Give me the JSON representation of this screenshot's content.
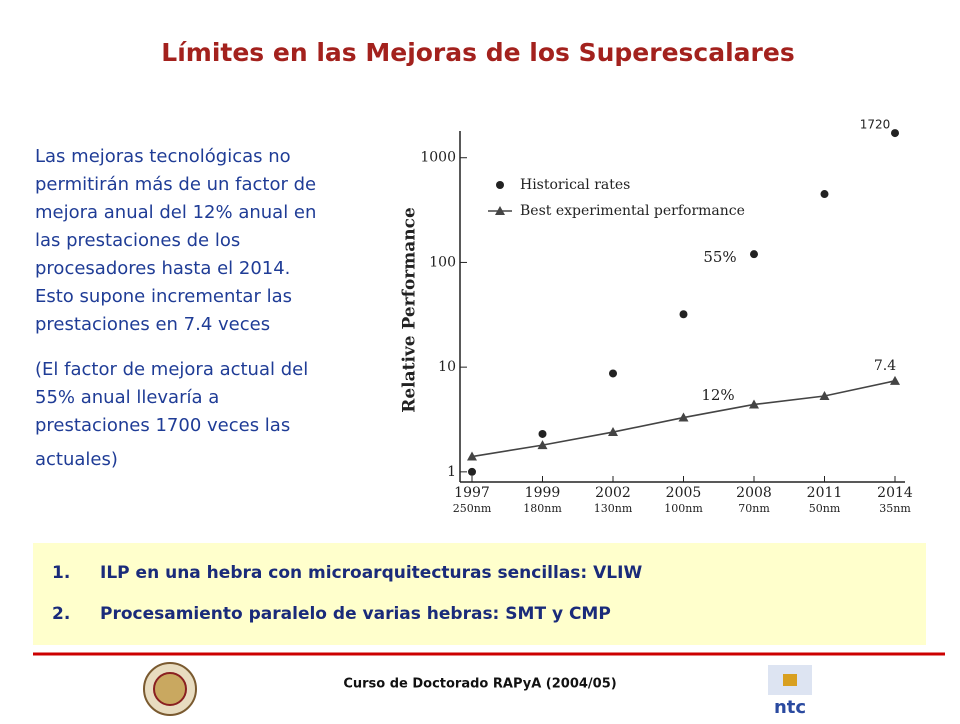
{
  "header": {
    "title": "Límites en las Mejoras de los Superescalares"
  },
  "body": {
    "paragraphs": [
      [
        "Las mejoras tecnológicas no",
        "permitirán más de un factor de",
        "mejora anual del 12% anual en",
        "las prestaciones de los",
        "procesadores hasta el 2014.",
        "Esto supone incrementar las",
        "prestaciones en 7.4 veces"
      ],
      [
        "(El factor de mejora actual del",
        "55% anual llevaría a",
        "prestaciones 1700 veces las",
        "actuales)"
      ]
    ]
  },
  "chart_data": {
    "type": "scatter",
    "y_label": "Relative Performance",
    "log_scale": true,
    "categories": [
      "1997",
      "1999",
      "2002",
      "2005",
      "2008",
      "2011",
      "2014"
    ],
    "sub_labels": [
      "250nm",
      "180nm",
      "130nm",
      "100nm",
      "70nm",
      "50nm",
      "35nm"
    ],
    "series": [
      {
        "name": "Historical rates",
        "color": "#222222",
        "marker": "circle",
        "line": false,
        "values": [
          1,
          2.3,
          8.7,
          32,
          120,
          450,
          1720
        ],
        "value_labels": [
          null,
          null,
          null,
          null,
          null,
          null,
          "1720"
        ]
      },
      {
        "name": "Best experimental performance",
        "color": "#444444",
        "marker": "triangle",
        "line": true,
        "values": [
          1.4,
          1.8,
          2.4,
          3.3,
          4.4,
          5.3,
          7.4
        ],
        "value_labels": [
          null,
          null,
          null,
          null,
          null,
          null,
          "7.4"
        ]
      }
    ],
    "annotations": [
      "55%",
      "12%"
    ],
    "ylim": [
      0.8,
      1800
    ],
    "yticks": [
      1,
      10,
      100,
      1000
    ]
  },
  "list": [
    "ILP en una hebra con microarquitecturas sencillas: VLIW",
    "Procesamiento paralelo de varias hebras: SMT y CMP"
  ],
  "list_numbers": [
    "1.",
    "2."
  ],
  "footer": {
    "text": "Curso de Doctorado RAPyA (2004/05)"
  }
}
